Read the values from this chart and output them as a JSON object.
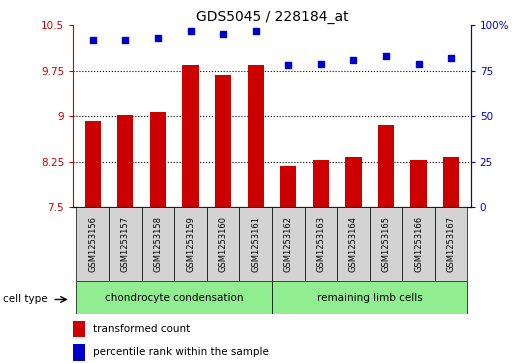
{
  "title": "GDS5045 / 228184_at",
  "samples": [
    "GSM1253156",
    "GSM1253157",
    "GSM1253158",
    "GSM1253159",
    "GSM1253160",
    "GSM1253161",
    "GSM1253162",
    "GSM1253163",
    "GSM1253164",
    "GSM1253165",
    "GSM1253166",
    "GSM1253167"
  ],
  "bar_values": [
    8.92,
    9.02,
    9.07,
    9.85,
    9.68,
    9.85,
    8.18,
    8.27,
    8.32,
    8.86,
    8.27,
    8.32
  ],
  "dot_values": [
    92,
    92,
    93,
    97,
    95,
    97,
    78,
    79,
    81,
    83,
    79,
    82
  ],
  "ylim_left": [
    7.5,
    10.5
  ],
  "ylim_right": [
    0,
    100
  ],
  "yticks_left": [
    7.5,
    8.25,
    9.0,
    9.75,
    10.5
  ],
  "ytick_labels_left": [
    "7.5",
    "8.25",
    "9",
    "9.75",
    "10.5"
  ],
  "yticks_right": [
    0,
    25,
    50,
    75,
    100
  ],
  "ytick_labels_right": [
    "0",
    "25",
    "50",
    "75",
    "100%"
  ],
  "bar_color": "#cc0000",
  "dot_color": "#0000cc",
  "grid_color": "#000000",
  "group1_label": "chondrocyte condensation",
  "group2_label": "remaining limb cells",
  "cell_type_label": "cell type",
  "legend_bar_label": "transformed count",
  "legend_dot_label": "percentile rank within the sample",
  "background_color": "#ffffff",
  "tick_area_color": "#d3d3d3",
  "group_color": "#90ee90"
}
